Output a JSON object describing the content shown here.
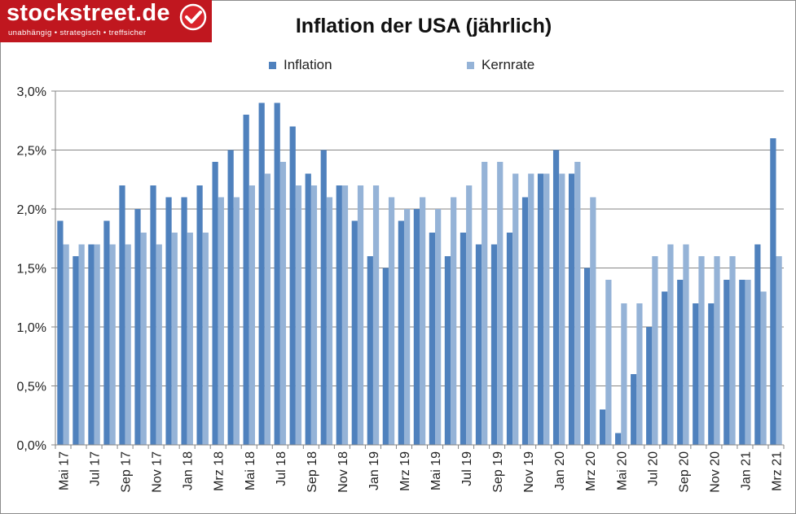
{
  "brand": {
    "name": "stockstreet.de",
    "tagline": "unabhängig • strategisch • treffsicher",
    "color": "#c0171f",
    "badge_icon": "check-icon"
  },
  "chart_data": {
    "type": "bar",
    "title": "Inflation der USA (jährlich)",
    "xlabel": "",
    "ylabel": "",
    "ylim": [
      0,
      3.0
    ],
    "yticks": [
      0,
      0.5,
      1.0,
      1.5,
      2.0,
      2.5,
      3.0
    ],
    "ytick_labels": [
      "0,0%",
      "0,5%",
      "1,0%",
      "1,5%",
      "2,0%",
      "2,5%",
      "3,0%"
    ],
    "grid": true,
    "legend_position": "top",
    "categories": [
      "Mai 17",
      "Jun 17",
      "Jul 17",
      "Aug 17",
      "Sep 17",
      "Okt 17",
      "Nov 17",
      "Dez 17",
      "Jan 18",
      "Feb 18",
      "Mrz 18",
      "Apr 18",
      "Mai 18",
      "Jun 18",
      "Jul 18",
      "Aug 18",
      "Sep 18",
      "Okt 18",
      "Nov 18",
      "Dez 18",
      "Jan 19",
      "Feb 19",
      "Mrz 19",
      "Apr 19",
      "Mai 19",
      "Jun 19",
      "Jul 19",
      "Aug 19",
      "Sep 19",
      "Okt 19",
      "Nov 19",
      "Dez 19",
      "Jan 20",
      "Feb 20",
      "Mrz 20",
      "Apr 20",
      "Mai 20",
      "Jun 20",
      "Jul 20",
      "Aug 20",
      "Sep 20",
      "Okt 20",
      "Nov 20",
      "Dez 20",
      "Jan 21",
      "Feb 21",
      "Mrz 21"
    ],
    "visible_tick_labels": [
      "Mai 17",
      "Jul 17",
      "Sep 17",
      "Nov 17",
      "Jan 18",
      "Mrz 18",
      "Mai 18",
      "Jul 18",
      "Sep 18",
      "Nov 18",
      "Jan 19",
      "Mrz 19",
      "Mai 19",
      "Jul 19",
      "Sep 19",
      "Nov 19",
      "Jan 20",
      "Mrz 20",
      "Mai 20",
      "Jul 20",
      "Sep 20",
      "Nov 20",
      "Jan 21",
      "Mrz 21"
    ],
    "series": [
      {
        "name": "Inflation",
        "color": "#4f81bd",
        "values": [
          1.9,
          1.6,
          1.7,
          1.9,
          2.2,
          2.0,
          2.2,
          2.1,
          2.1,
          2.2,
          2.4,
          2.5,
          2.8,
          2.9,
          2.9,
          2.7,
          2.3,
          2.5,
          2.2,
          1.9,
          1.6,
          1.5,
          1.9,
          2.0,
          1.8,
          1.6,
          1.8,
          1.7,
          1.7,
          1.8,
          2.1,
          2.3,
          2.5,
          2.3,
          1.5,
          0.3,
          0.1,
          0.6,
          1.0,
          1.3,
          1.4,
          1.2,
          1.2,
          1.4,
          1.4,
          1.7,
          2.6
        ]
      },
      {
        "name": "Kernrate",
        "color": "#95b3d7",
        "values": [
          1.7,
          1.7,
          1.7,
          1.7,
          1.7,
          1.8,
          1.7,
          1.8,
          1.8,
          1.8,
          2.1,
          2.1,
          2.2,
          2.3,
          2.4,
          2.2,
          2.2,
          2.1,
          2.2,
          2.2,
          2.2,
          2.1,
          2.0,
          2.1,
          2.0,
          2.1,
          2.2,
          2.4,
          2.4,
          2.3,
          2.3,
          2.3,
          2.3,
          2.4,
          2.1,
          1.4,
          1.2,
          1.2,
          1.6,
          1.7,
          1.7,
          1.6,
          1.6,
          1.6,
          1.4,
          1.3,
          1.6
        ]
      }
    ]
  }
}
